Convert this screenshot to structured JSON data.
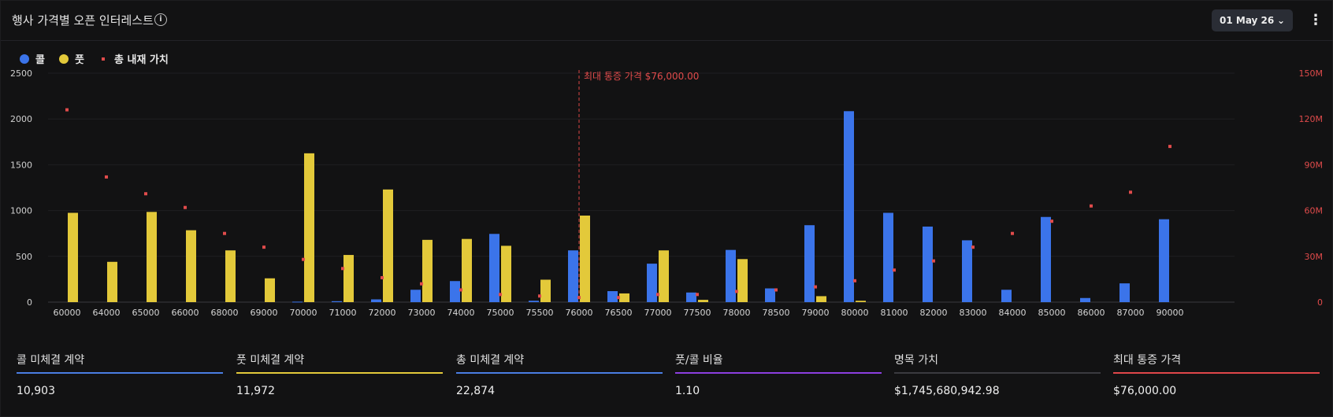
{
  "header": {
    "title": "행사 가격별 오픈 인터레스트",
    "date_label": "01 May 26"
  },
  "legend": {
    "call": "콜",
    "put": "풋",
    "intrinsic": "총 내재 가치"
  },
  "colors": {
    "call": "#3b74ea",
    "put": "#e3c93a",
    "intrinsic": "#e04b4b",
    "max_pain_line": "#d94545",
    "grid": "#1f1f23"
  },
  "chart_data": {
    "type": "bar",
    "categories": [
      "60000",
      "64000",
      "65000",
      "66000",
      "68000",
      "69000",
      "70000",
      "71000",
      "72000",
      "73000",
      "74000",
      "75000",
      "75500",
      "76000",
      "76500",
      "77000",
      "77500",
      "78000",
      "78500",
      "79000",
      "80000",
      "81000",
      "82000",
      "83000",
      "84000",
      "85000",
      "86000",
      "87000",
      "90000"
    ],
    "series": [
      {
        "name": "콜",
        "axis": "left",
        "values": [
          0,
          0,
          0,
          0,
          0,
          0,
          5,
          10,
          30,
          135,
          230,
          745,
          15,
          565,
          120,
          420,
          105,
          570,
          150,
          840,
          2085,
          975,
          825,
          675,
          135,
          930,
          45,
          205,
          905
        ]
      },
      {
        "name": "풋",
        "axis": "left",
        "values": [
          975,
          440,
          985,
          785,
          565,
          260,
          1625,
          515,
          1230,
          680,
          690,
          615,
          245,
          945,
          95,
          565,
          25,
          470,
          0,
          65,
          15,
          0,
          0,
          0,
          0,
          0,
          0,
          0,
          0
        ]
      },
      {
        "name": "총 내재 가치",
        "axis": "right",
        "type": "scatter",
        "values": [
          126,
          82,
          71,
          62,
          45,
          36,
          28,
          22,
          16,
          12,
          8,
          5,
          4,
          3,
          3,
          5,
          5,
          7,
          8,
          10,
          14,
          21,
          27,
          36,
          45,
          53,
          63,
          72,
          102
        ]
      }
    ],
    "y_left": {
      "min": 0,
      "max": 2500,
      "ticks": [
        "0",
        "500",
        "1000",
        "1500",
        "2000",
        "2500"
      ]
    },
    "y_right": {
      "min": 0,
      "max": 150,
      "unit": "M",
      "ticks": [
        "0",
        "30M",
        "60M",
        "90M",
        "120M",
        "150M"
      ]
    },
    "max_pain": {
      "category": "76000",
      "label": "최대 통증 가격 $76,000.00"
    },
    "grid": true,
    "legend_position": "top-left"
  },
  "stats": [
    {
      "label": "콜 미체결 계약",
      "value": "10,903",
      "color": "#4a7de3"
    },
    {
      "label": "풋 미체결 계약",
      "value": "11,972",
      "color": "#e3c93a"
    },
    {
      "label": "총 미체결 계약",
      "value": "22,874",
      "color": "#4a7de3"
    },
    {
      "label": "풋/콜 비율",
      "value": "1.10",
      "color": "#8c3fe0"
    },
    {
      "label": "명목 가치",
      "value": "$1,745,680,942.98",
      "color": "#3a3a40"
    },
    {
      "label": "최대 통증 가격",
      "value": "$76,000.00",
      "color": "#e0474a"
    }
  ]
}
